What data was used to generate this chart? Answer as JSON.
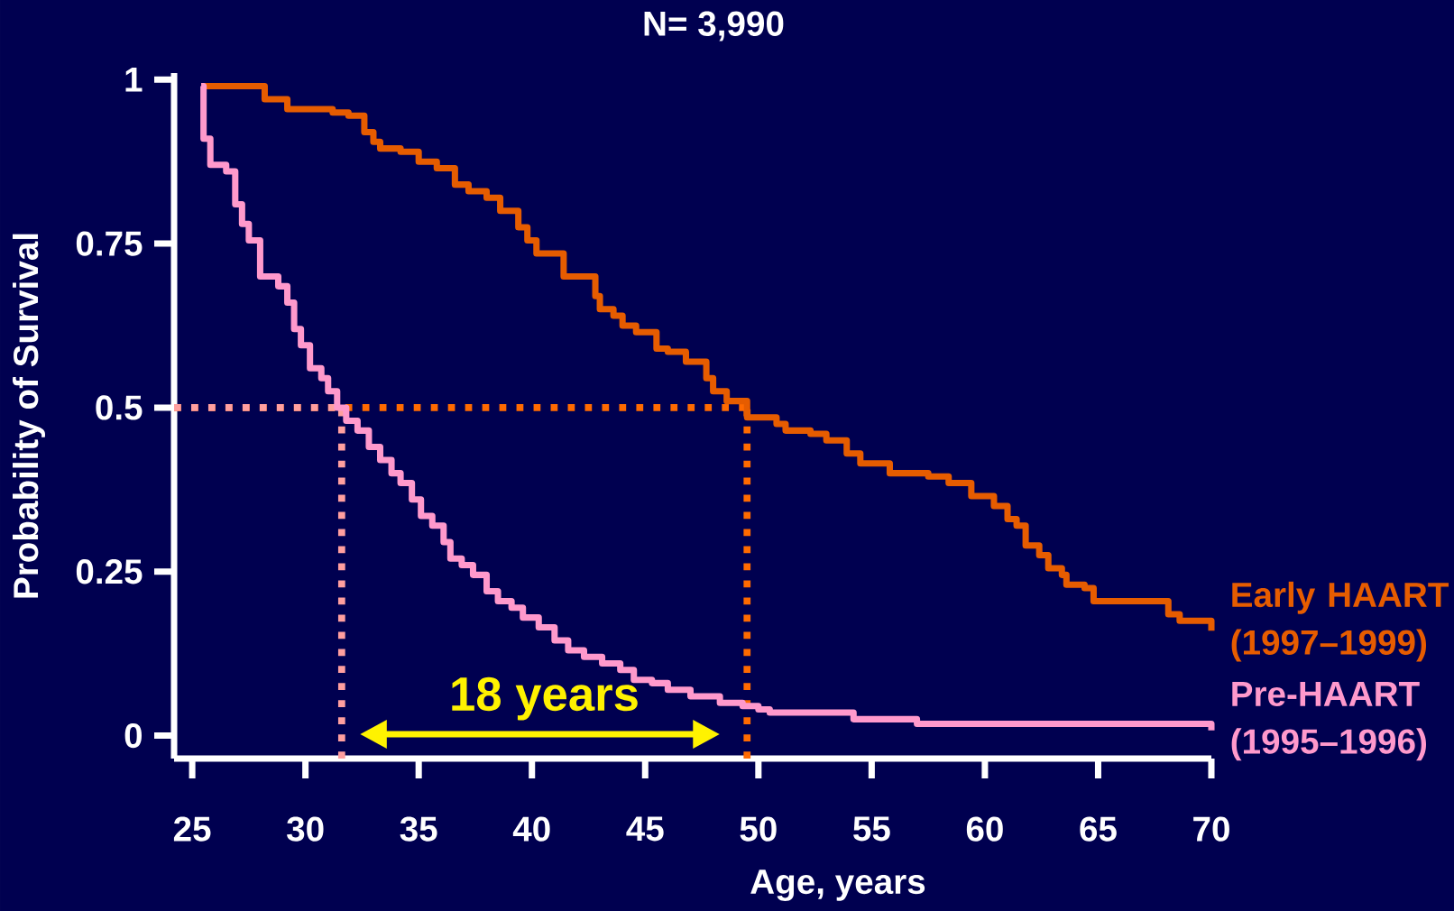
{
  "chart_data": {
    "type": "step",
    "title": "N= 3,990",
    "xlabel": "Age, years",
    "ylabel": "Probability of Survival",
    "xlim": [
      24.2,
      70
    ],
    "ylim": [
      -0.035,
      1.01
    ],
    "xticks": [
      25,
      30,
      35,
      40,
      45,
      50,
      55,
      60,
      65,
      70
    ],
    "yticks": [
      0,
      0.25,
      0.5,
      0.75,
      1
    ],
    "grid": false,
    "series": [
      {
        "name": "Early HAART (1997–1999)",
        "color": "#e65c00",
        "x": [
          25.4,
          28.2,
          29.2,
          31.2,
          31.9,
          32.6,
          33.0,
          33.3,
          34.2,
          35.0,
          35.8,
          36.6,
          37.2,
          38.0,
          38.6,
          39.4,
          39.8,
          40.2,
          41.4,
          42.8,
          43.0,
          43.6,
          44.0,
          44.6,
          45.5,
          46.0,
          46.8,
          47.7,
          48.0,
          48.6,
          49.5,
          50.8,
          51.2,
          52.3,
          53.0,
          53.9,
          54.5,
          55.8,
          57.5,
          58.4,
          59.4,
          60.4,
          61.0,
          61.4,
          61.8,
          62.4,
          62.8,
          63.4,
          63.6,
          64.4,
          64.8,
          67.8,
          68.1,
          68.6,
          70,
          70
        ],
        "values": [
          0.99,
          0.97,
          0.955,
          0.95,
          0.945,
          0.92,
          0.905,
          0.895,
          0.89,
          0.875,
          0.865,
          0.84,
          0.83,
          0.82,
          0.8,
          0.775,
          0.755,
          0.735,
          0.7,
          0.67,
          0.65,
          0.64,
          0.625,
          0.615,
          0.59,
          0.585,
          0.57,
          0.545,
          0.525,
          0.51,
          0.485,
          0.475,
          0.465,
          0.46,
          0.45,
          0.43,
          0.415,
          0.4,
          0.395,
          0.385,
          0.365,
          0.35,
          0.33,
          0.32,
          0.29,
          0.275,
          0.255,
          0.245,
          0.23,
          0.225,
          0.205,
          0.205,
          0.185,
          0.175,
          0.175,
          0.16
        ]
      },
      {
        "name": "Pre-HAART (1995–1996)",
        "color": "#ff99cc",
        "x": [
          25.4,
          25.5,
          25.8,
          26.5,
          26.9,
          27.2,
          27.5,
          28.0,
          28.8,
          29.2,
          29.5,
          29.8,
          30.2,
          30.7,
          31.0,
          31.4,
          31.8,
          32.3,
          32.8,
          33.3,
          33.8,
          34.2,
          34.7,
          35.1,
          35.6,
          36.1,
          36.4,
          36.9,
          37.4,
          38.0,
          38.5,
          39.1,
          39.6,
          40.3,
          41.0,
          41.6,
          42.3,
          43.1,
          43.9,
          44.5,
          45.3,
          46.0,
          47.0,
          48.3,
          49.3,
          50.0,
          50.5,
          54.2,
          57.0,
          70
        ],
        "values": [
          0.99,
          0.91,
          0.87,
          0.86,
          0.81,
          0.78,
          0.755,
          0.7,
          0.685,
          0.66,
          0.62,
          0.595,
          0.56,
          0.545,
          0.525,
          0.5,
          0.48,
          0.465,
          0.44,
          0.42,
          0.4,
          0.385,
          0.36,
          0.335,
          0.32,
          0.295,
          0.27,
          0.26,
          0.245,
          0.22,
          0.205,
          0.195,
          0.18,
          0.165,
          0.145,
          0.13,
          0.12,
          0.11,
          0.1,
          0.085,
          0.08,
          0.07,
          0.06,
          0.05,
          0.045,
          0.04,
          0.035,
          0.025,
          0.018,
          0.008
        ]
      }
    ],
    "ref_lines": [
      {
        "axis": "y",
        "value": 0.5,
        "color": "#ff9f9f",
        "line_style": "dotted"
      },
      {
        "axis": "x",
        "value": 31.6,
        "color": "#ff9f9f",
        "line_style": "dotted"
      },
      {
        "axis": "y",
        "value": 0.5,
        "color": "#ff6a00",
        "line_style": "dotted"
      },
      {
        "axis": "x",
        "value": 49.5,
        "color": "#ff6a00",
        "line_style": "dotted"
      }
    ],
    "annotations": [
      "18 years"
    ]
  }
}
